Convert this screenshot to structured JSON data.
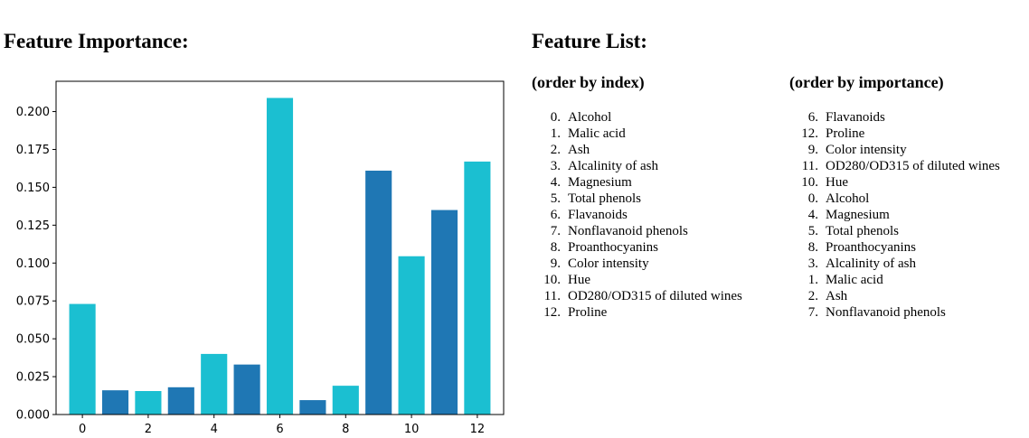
{
  "headings": {
    "feature_importance": "Feature Importance:",
    "feature_list": "Feature List:"
  },
  "feature_list": {
    "by_index_title": "(order by index)",
    "by_importance_title": "(order by importance)",
    "by_index": [
      {
        "num": "0.",
        "name": "Alcohol"
      },
      {
        "num": "1.",
        "name": "Malic acid"
      },
      {
        "num": "2.",
        "name": "Ash"
      },
      {
        "num": "3.",
        "name": "Alcalinity of ash"
      },
      {
        "num": "4.",
        "name": "Magnesium"
      },
      {
        "num": "5.",
        "name": "Total phenols"
      },
      {
        "num": "6.",
        "name": "Flavanoids"
      },
      {
        "num": "7.",
        "name": "Nonflavanoid phenols"
      },
      {
        "num": "8.",
        "name": "Proanthocyanins"
      },
      {
        "num": "9.",
        "name": "Color intensity"
      },
      {
        "num": "10.",
        "name": "Hue"
      },
      {
        "num": "11.",
        "name": "OD280/OD315 of diluted wines"
      },
      {
        "num": "12.",
        "name": "Proline"
      }
    ],
    "by_importance": [
      {
        "num": "6.",
        "name": "Flavanoids"
      },
      {
        "num": "12.",
        "name": "Proline"
      },
      {
        "num": "9.",
        "name": "Color intensity"
      },
      {
        "num": "11.",
        "name": "OD280/OD315 of diluted wines"
      },
      {
        "num": "10.",
        "name": "Hue"
      },
      {
        "num": "0.",
        "name": "Alcohol"
      },
      {
        "num": "4.",
        "name": "Magnesium"
      },
      {
        "num": "5.",
        "name": "Total phenols"
      },
      {
        "num": "8.",
        "name": "Proanthocyanins"
      },
      {
        "num": "3.",
        "name": "Alcalinity of ash"
      },
      {
        "num": "1.",
        "name": "Malic acid"
      },
      {
        "num": "2.",
        "name": "Ash"
      },
      {
        "num": "7.",
        "name": "Nonflavanoid phenols"
      }
    ]
  },
  "chart_data": {
    "type": "bar",
    "title": "",
    "xlabel": "",
    "ylabel": "",
    "categories": [
      0,
      1,
      2,
      3,
      4,
      5,
      6,
      7,
      8,
      9,
      10,
      11,
      12
    ],
    "values": [
      0.073,
      0.016,
      0.0155,
      0.018,
      0.04,
      0.033,
      0.209,
      0.0095,
      0.019,
      0.161,
      0.1045,
      0.135,
      0.167
    ],
    "bar_colors": [
      "#1bbfd1",
      "#1f77b4",
      "#1bbfd1",
      "#1f77b4",
      "#1bbfd1",
      "#1f77b4",
      "#1bbfd1",
      "#1f77b4",
      "#1bbfd1",
      "#1f77b4",
      "#1bbfd1",
      "#1f77b4",
      "#1bbfd1"
    ],
    "xticks": [
      0,
      2,
      4,
      6,
      8,
      10,
      12
    ],
    "xtick_labels": [
      "0",
      "2",
      "4",
      "6",
      "8",
      "10",
      "12"
    ],
    "yticks": [
      0.0,
      0.025,
      0.05,
      0.075,
      0.1,
      0.125,
      0.15,
      0.175,
      0.2
    ],
    "ytick_labels": [
      "0.000",
      "0.025",
      "0.050",
      "0.075",
      "0.100",
      "0.125",
      "0.150",
      "0.175",
      "0.200"
    ],
    "xlim": [
      -0.8,
      12.8
    ],
    "ylim": [
      0,
      0.22
    ],
    "grid": false,
    "legend": false
  }
}
